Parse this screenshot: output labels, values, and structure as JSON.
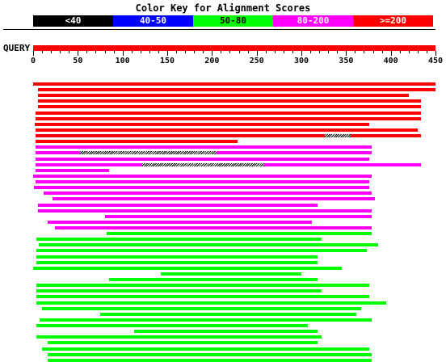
{
  "title": "Color Key for Alignment Scores",
  "score_key": [
    {
      "label": "<40",
      "bg": "#000000",
      "fg": "#ffffff"
    },
    {
      "label": "40-50",
      "bg": "#0000ff",
      "fg": "#ffffff"
    },
    {
      "label": "50-80",
      "bg": "#00ff00",
      "fg": "#000000"
    },
    {
      "label": "80-200",
      "bg": "#ff00ff",
      "fg": "#ffffff"
    },
    {
      "label": ">=200",
      "bg": "#ff0000",
      "fg": "#ffffff"
    }
  ],
  "query_label": "QUERY",
  "query_length": 450,
  "axis_ticks": [
    "0",
    "50",
    "100",
    "150",
    "200",
    "250",
    "300",
    "350",
    "400",
    "450"
  ],
  "chart_data": {
    "type": "bar",
    "title": "Color Key for Alignment Scores",
    "xlabel": "",
    "ylabel": "",
    "xlim": [
      0,
      450
    ],
    "hits": [
      {
        "start": 0,
        "end": 450,
        "score": ">=200"
      },
      {
        "start": 5,
        "end": 450,
        "score": ">=200"
      },
      {
        "start": 5,
        "end": 420,
        "score": ">=200"
      },
      {
        "start": 5,
        "end": 434,
        "score": ">=200"
      },
      {
        "start": 5,
        "end": 434,
        "score": ">=200"
      },
      {
        "start": 3,
        "end": 434,
        "score": ">=200"
      },
      {
        "start": 3,
        "end": 434,
        "score": ">=200"
      },
      {
        "start": 2,
        "end": 376,
        "score": ">=200"
      },
      {
        "start": 3,
        "end": 430,
        "score": ">=200"
      },
      {
        "start": 3,
        "end": 434,
        "score": ">=200",
        "gaps": [
          [
            326,
            355
          ]
        ]
      },
      {
        "start": 3,
        "end": 229,
        "score": ">=200"
      },
      {
        "start": 3,
        "end": 379,
        "score": "80-200"
      },
      {
        "start": 3,
        "end": 379,
        "score": "80-200",
        "gaps": [
          [
            52,
            205
          ]
        ]
      },
      {
        "start": 3,
        "end": 376,
        "score": "80-200"
      },
      {
        "start": 3,
        "end": 434,
        "score": "80-200",
        "gaps": [
          [
            122,
            258
          ]
        ]
      },
      {
        "start": 3,
        "end": 85,
        "score": "80-200"
      },
      {
        "start": 0,
        "end": 379,
        "score": "80-200"
      },
      {
        "start": 3,
        "end": 376,
        "score": "80-200"
      },
      {
        "start": 1,
        "end": 376,
        "score": "80-200"
      },
      {
        "start": 12,
        "end": 379,
        "score": "80-200"
      },
      {
        "start": 22,
        "end": 382,
        "score": "80-200"
      },
      {
        "start": 5,
        "end": 318,
        "score": "80-200"
      },
      {
        "start": 5,
        "end": 379,
        "score": "80-200"
      },
      {
        "start": 80,
        "end": 379,
        "score": "80-200"
      },
      {
        "start": 16,
        "end": 312,
        "score": "80-200"
      },
      {
        "start": 24,
        "end": 379,
        "score": "80-200"
      },
      {
        "start": 82,
        "end": 379,
        "score": "50-80"
      },
      {
        "start": 4,
        "end": 323,
        "score": "50-80"
      },
      {
        "start": 6,
        "end": 386,
        "score": "50-80"
      },
      {
        "start": 4,
        "end": 373,
        "score": "50-80"
      },
      {
        "start": 4,
        "end": 318,
        "score": "50-80"
      },
      {
        "start": 4,
        "end": 318,
        "score": "50-80"
      },
      {
        "start": 0,
        "end": 345,
        "score": "50-80"
      },
      {
        "start": 143,
        "end": 300,
        "score": "50-80"
      },
      {
        "start": 85,
        "end": 318,
        "score": "50-80"
      },
      {
        "start": 4,
        "end": 376,
        "score": "50-80"
      },
      {
        "start": 4,
        "end": 323,
        "score": "50-80"
      },
      {
        "start": 4,
        "end": 376,
        "score": "50-80"
      },
      {
        "start": 4,
        "end": 395,
        "score": "50-80"
      },
      {
        "start": 10,
        "end": 367,
        "score": "50-80"
      },
      {
        "start": 75,
        "end": 361,
        "score": "50-80"
      },
      {
        "start": 7,
        "end": 379,
        "score": "50-80"
      },
      {
        "start": 4,
        "end": 307,
        "score": "50-80"
      },
      {
        "start": 113,
        "end": 318,
        "score": "50-80"
      },
      {
        "start": 4,
        "end": 323,
        "score": "50-80"
      },
      {
        "start": 16,
        "end": 318,
        "score": "50-80"
      },
      {
        "start": 10,
        "end": 376,
        "score": "50-80"
      },
      {
        "start": 16,
        "end": 379,
        "score": "50-80"
      },
      {
        "start": 16,
        "end": 379,
        "score": "50-80"
      }
    ]
  }
}
